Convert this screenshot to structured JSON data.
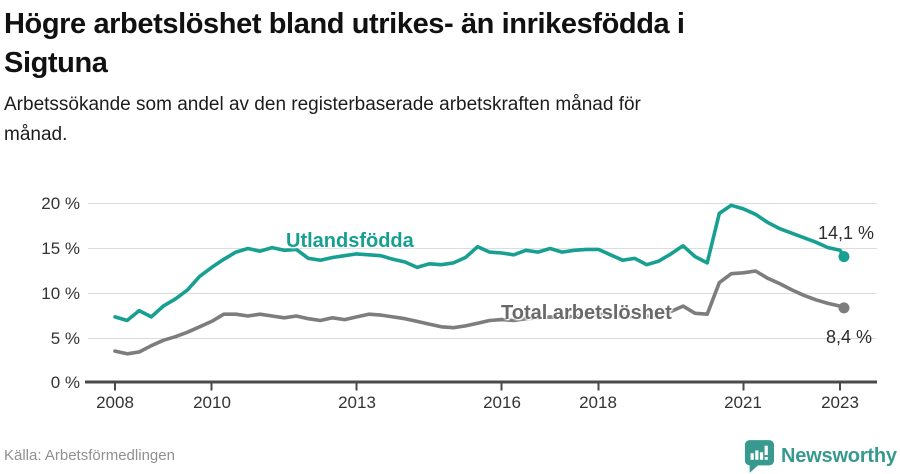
{
  "header": {
    "title": "Högre arbetslöshet bland utrikes- än inrikesfödda i Sigtuna",
    "subtitle": "Arbetssökande som andel av den registerbaserade arbetskraften månad för månad."
  },
  "chart_data": {
    "type": "line",
    "title": "Högre arbetslöshet bland utrikes- än inrikesfödda i Sigtuna",
    "subtitle": "Arbetssökande som andel av den registerbaserade arbetskraften månad för månad.",
    "grid": "horizontal",
    "legend_position": "inline-labels",
    "ylim": [
      0,
      21
    ],
    "x_range": [
      2008,
      2023.8
    ],
    "y_ticks": [
      "0 %",
      "5 %",
      "10 %",
      "15 %",
      "20 %"
    ],
    "y_tick_values": [
      0,
      5,
      10,
      15,
      20
    ],
    "x_tick_labels": [
      "2008",
      "2010",
      "2013",
      "2016",
      "2018",
      "2021",
      "2023"
    ],
    "x_tick_values": [
      2008,
      2010,
      2013,
      2016,
      2018,
      2021,
      2023
    ],
    "series": [
      {
        "name": "Utlandsfödda",
        "color": "#17a092",
        "end_label": "14,1 %",
        "end_value": 14.1,
        "points": [
          [
            2008.0,
            7.4
          ],
          [
            2008.25,
            7.0
          ],
          [
            2008.5,
            8.1
          ],
          [
            2008.75,
            7.4
          ],
          [
            2009.0,
            8.6
          ],
          [
            2009.25,
            9.4
          ],
          [
            2009.5,
            10.4
          ],
          [
            2009.75,
            11.9
          ],
          [
            2010.0,
            12.9
          ],
          [
            2010.25,
            13.8
          ],
          [
            2010.5,
            14.6
          ],
          [
            2010.75,
            15.0
          ],
          [
            2011.0,
            14.7
          ],
          [
            2011.25,
            15.1
          ],
          [
            2011.5,
            14.8
          ],
          [
            2011.75,
            14.9
          ],
          [
            2012.0,
            13.9
          ],
          [
            2012.25,
            13.7
          ],
          [
            2012.5,
            14.0
          ],
          [
            2012.75,
            14.2
          ],
          [
            2013.0,
            14.4
          ],
          [
            2013.25,
            14.3
          ],
          [
            2013.5,
            14.2
          ],
          [
            2013.75,
            13.8
          ],
          [
            2014.0,
            13.5
          ],
          [
            2014.25,
            12.9
          ],
          [
            2014.5,
            13.3
          ],
          [
            2014.75,
            13.2
          ],
          [
            2015.0,
            13.4
          ],
          [
            2015.25,
            14.0
          ],
          [
            2015.5,
            15.2
          ],
          [
            2015.75,
            14.6
          ],
          [
            2016.0,
            14.5
          ],
          [
            2016.25,
            14.3
          ],
          [
            2016.5,
            14.8
          ],
          [
            2016.75,
            14.6
          ],
          [
            2017.0,
            15.0
          ],
          [
            2017.25,
            14.6
          ],
          [
            2017.5,
            14.8
          ],
          [
            2017.75,
            14.9
          ],
          [
            2018.0,
            14.9
          ],
          [
            2018.25,
            14.3
          ],
          [
            2018.5,
            13.7
          ],
          [
            2018.75,
            13.9
          ],
          [
            2019.0,
            13.2
          ],
          [
            2019.25,
            13.6
          ],
          [
            2019.5,
            14.4
          ],
          [
            2019.75,
            15.3
          ],
          [
            2020.0,
            14.1
          ],
          [
            2020.25,
            13.4
          ],
          [
            2020.5,
            18.9
          ],
          [
            2020.75,
            19.8
          ],
          [
            2021.0,
            19.4
          ],
          [
            2021.25,
            18.8
          ],
          [
            2021.5,
            17.9
          ],
          [
            2021.75,
            17.2
          ],
          [
            2022.0,
            16.7
          ],
          [
            2022.25,
            16.2
          ],
          [
            2022.5,
            15.7
          ],
          [
            2022.75,
            15.1
          ],
          [
            2023.0,
            14.8
          ],
          [
            2023.08,
            14.1
          ]
        ]
      },
      {
        "name": "Total arbetslöshet",
        "color": "#7d7d7d",
        "end_label": "8,4 %",
        "end_value": 8.4,
        "points": [
          [
            2008.0,
            3.6
          ],
          [
            2008.25,
            3.3
          ],
          [
            2008.5,
            3.5
          ],
          [
            2008.75,
            4.2
          ],
          [
            2009.0,
            4.8
          ],
          [
            2009.25,
            5.2
          ],
          [
            2009.5,
            5.7
          ],
          [
            2009.75,
            6.3
          ],
          [
            2010.0,
            6.9
          ],
          [
            2010.25,
            7.7
          ],
          [
            2010.5,
            7.7
          ],
          [
            2010.75,
            7.5
          ],
          [
            2011.0,
            7.7
          ],
          [
            2011.25,
            7.5
          ],
          [
            2011.5,
            7.3
          ],
          [
            2011.75,
            7.5
          ],
          [
            2012.0,
            7.2
          ],
          [
            2012.25,
            7.0
          ],
          [
            2012.5,
            7.3
          ],
          [
            2012.75,
            7.1
          ],
          [
            2013.0,
            7.4
          ],
          [
            2013.25,
            7.7
          ],
          [
            2013.5,
            7.6
          ],
          [
            2013.75,
            7.4
          ],
          [
            2014.0,
            7.2
          ],
          [
            2014.25,
            6.9
          ],
          [
            2014.5,
            6.6
          ],
          [
            2014.75,
            6.3
          ],
          [
            2015.0,
            6.2
          ],
          [
            2015.25,
            6.4
          ],
          [
            2015.5,
            6.7
          ],
          [
            2015.75,
            7.0
          ],
          [
            2016.0,
            7.1
          ],
          [
            2016.25,
            7.0
          ],
          [
            2016.5,
            7.2
          ],
          [
            2016.75,
            7.3
          ],
          [
            2017.0,
            7.4
          ],
          [
            2017.25,
            7.3
          ],
          [
            2017.5,
            7.5
          ],
          [
            2017.75,
            7.6
          ],
          [
            2018.0,
            7.7
          ],
          [
            2018.25,
            7.6
          ],
          [
            2018.5,
            7.5
          ],
          [
            2018.75,
            7.4
          ],
          [
            2019.0,
            7.5
          ],
          [
            2019.25,
            7.6
          ],
          [
            2019.5,
            8.0
          ],
          [
            2019.75,
            8.6
          ],
          [
            2020.0,
            7.8
          ],
          [
            2020.25,
            7.7
          ],
          [
            2020.5,
            11.2
          ],
          [
            2020.75,
            12.2
          ],
          [
            2021.0,
            12.3
          ],
          [
            2021.25,
            12.5
          ],
          [
            2021.5,
            11.7
          ],
          [
            2021.75,
            11.1
          ],
          [
            2022.0,
            10.4
          ],
          [
            2022.25,
            9.8
          ],
          [
            2022.5,
            9.3
          ],
          [
            2022.75,
            8.9
          ],
          [
            2023.0,
            8.6
          ],
          [
            2023.08,
            8.4
          ]
        ]
      }
    ]
  },
  "colors": {
    "accent_teal": "#17a092",
    "series_gray": "#7d7d7d",
    "gridline": "#dcdcdc",
    "axis": "#4a4a4a",
    "brand_teal": "#38998f"
  },
  "footer": {
    "source": "Källa: Arbetsförmedlingen",
    "brand_name": "Newsworthy"
  }
}
